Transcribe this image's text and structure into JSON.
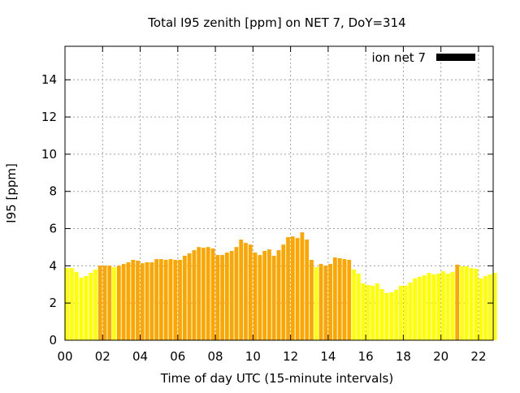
{
  "chart_data": {
    "type": "bar",
    "title": "Total I95 zenith [ppm] on NET 7, DoY=314",
    "xlabel": "Time of day UTC (15-minute intervals)",
    "ylabel": "I95 [ppm]",
    "xlim": [
      0,
      22.78
    ],
    "ylim": [
      0,
      15.8
    ],
    "grid": true,
    "legend": {
      "label": "ion net 7",
      "placement": "top-right",
      "color": "#000000"
    },
    "xticks": [
      {
        "v": 0,
        "label": "00"
      },
      {
        "v": 2,
        "label": "02"
      },
      {
        "v": 4,
        "label": "04"
      },
      {
        "v": 6,
        "label": "06"
      },
      {
        "v": 8,
        "label": "08"
      },
      {
        "v": 10,
        "label": "10"
      },
      {
        "v": 12,
        "label": "12"
      },
      {
        "v": 14,
        "label": "14"
      },
      {
        "v": 16,
        "label": "16"
      },
      {
        "v": 18,
        "label": "18"
      },
      {
        "v": 20,
        "label": "20"
      },
      {
        "v": 22,
        "label": "22"
      }
    ],
    "yticks": [
      {
        "v": 0,
        "label": "0"
      },
      {
        "v": 2,
        "label": "2"
      },
      {
        "v": 4,
        "label": "4"
      },
      {
        "v": 6,
        "label": "6"
      },
      {
        "v": 8,
        "label": "8"
      },
      {
        "v": 10,
        "label": "10"
      },
      {
        "v": 12,
        "label": "12"
      },
      {
        "v": 14,
        "label": "14"
      }
    ],
    "interval_hours": 0.25,
    "color_threshold": 4.0,
    "color_low": "#FFFF00",
    "color_high": "#FFA500",
    "values": [
      3.88,
      3.88,
      3.67,
      3.36,
      3.45,
      3.62,
      3.8,
      4.01,
      4.01,
      4.01,
      3.93,
      4.01,
      4.1,
      4.19,
      4.32,
      4.28,
      4.14,
      4.19,
      4.19,
      4.36,
      4.36,
      4.32,
      4.36,
      4.32,
      4.32,
      4.54,
      4.67,
      4.84,
      5.01,
      4.97,
      5.01,
      4.93,
      4.58,
      4.58,
      4.71,
      4.8,
      5.01,
      5.41,
      5.23,
      5.14,
      4.71,
      4.58,
      4.8,
      4.88,
      4.54,
      4.84,
      5.14,
      5.54,
      5.58,
      5.49,
      5.8,
      5.41,
      4.32,
      3.93,
      4.1,
      4.01,
      4.1,
      4.45,
      4.41,
      4.36,
      4.32,
      3.8,
      3.58,
      3.06,
      2.97,
      2.93,
      3.06,
      2.75,
      2.54,
      2.58,
      2.71,
      2.93,
      2.93,
      3.1,
      3.32,
      3.41,
      3.49,
      3.62,
      3.54,
      3.58,
      3.71,
      3.58,
      3.67,
      4.06,
      3.97,
      3.97,
      3.88,
      3.84,
      3.32,
      3.45,
      3.54,
      3.62
    ]
  }
}
